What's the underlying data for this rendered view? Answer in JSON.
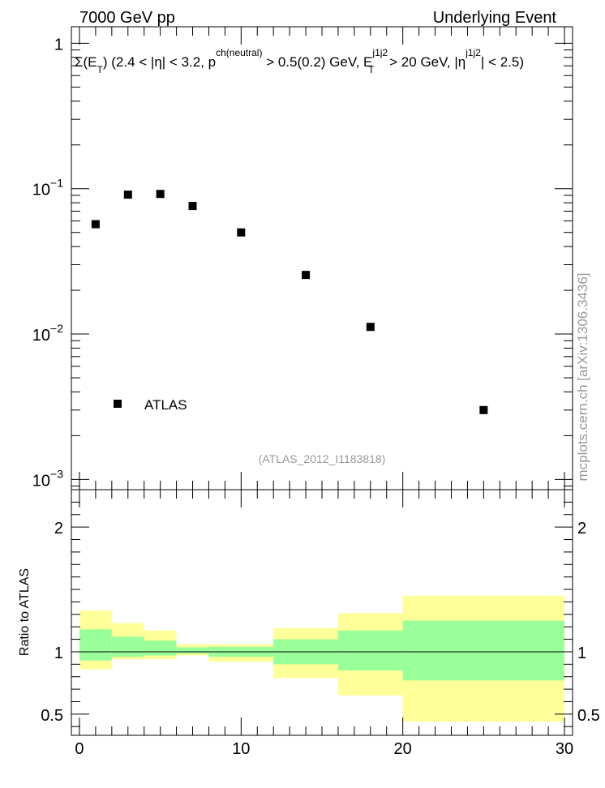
{
  "header": {
    "left": "7000 GeV pp",
    "right": "Underlying Event"
  },
  "watermark": "mcplots.cern.ch [arXiv:1306.3436]",
  "analysis_id": "(ATLAS_2012_I1183818)",
  "plot_label": {
    "sigma": "Σ(E",
    "sub_T": "T",
    "part1": ") (2.4 < |η| < 3.2, p",
    "sup_ch": "ch(neutral)",
    "part2": " > 0.5(0.2) GeV, E",
    "sup_j": "j1j2",
    "sub_T2": "T",
    "part3": " > 20 GeV, |η",
    "sup_j2": "j1j2",
    "part4": "| < 2.5)"
  },
  "chart_data": [
    {
      "type": "scatter",
      "series": [
        {
          "name": "ATLAS",
          "x": [
            1,
            3,
            5,
            7,
            10,
            14,
            18,
            25
          ],
          "y": [
            0.057,
            0.091,
            0.092,
            0.076,
            0.05,
            0.0255,
            0.0112,
            0.003
          ]
        }
      ],
      "xlim": [
        -0.5,
        30.5
      ],
      "ylim": [
        0.00085,
        1.3
      ],
      "yscale": "log",
      "ytick_labels": [
        {
          "value": 1,
          "base": "1",
          "exp": ""
        },
        {
          "value": 0.1,
          "base": "10",
          "exp": "−1"
        },
        {
          "value": 0.01,
          "base": "10",
          "exp": "−2"
        },
        {
          "value": 0.001,
          "base": "10",
          "exp": "−3"
        }
      ],
      "legend": {
        "label": "ATLAS",
        "placement": "bottom-left"
      }
    },
    {
      "type": "area",
      "ylabel": "Ratio to ATLAS",
      "xlim": [
        -0.5,
        30.5
      ],
      "ylim": [
        0.33,
        2.3
      ],
      "xticks": [
        0,
        10,
        20,
        30
      ],
      "yticks": [
        0.5,
        1,
        2
      ],
      "ytick_labels": [
        "0.5",
        "1",
        "2"
      ],
      "bins": [
        {
          "lo": 0,
          "hi": 2,
          "inner": [
            0.93,
            1.18
          ],
          "outer": [
            0.86,
            1.33
          ]
        },
        {
          "lo": 2,
          "hi": 4,
          "inner": [
            0.96,
            1.12
          ],
          "outer": [
            0.94,
            1.23
          ]
        },
        {
          "lo": 4,
          "hi": 6,
          "inner": [
            0.97,
            1.09
          ],
          "outer": [
            0.94,
            1.17
          ]
        },
        {
          "lo": 6,
          "hi": 8,
          "inner": [
            0.985,
            1.035
          ],
          "outer": [
            0.97,
            1.06
          ]
        },
        {
          "lo": 8,
          "hi": 12,
          "inner": [
            0.96,
            1.04
          ],
          "outer": [
            0.92,
            1.06
          ]
        },
        {
          "lo": 12,
          "hi": 16,
          "inner": [
            0.9,
            1.1
          ],
          "outer": [
            0.79,
            1.19
          ]
        },
        {
          "lo": 16,
          "hi": 20,
          "inner": [
            0.85,
            1.17
          ],
          "outer": [
            0.65,
            1.31
          ]
        },
        {
          "lo": 20,
          "hi": 30,
          "inner": [
            0.77,
            1.25
          ],
          "outer": [
            0.44,
            1.45
          ]
        }
      ],
      "reference_line": 1,
      "colors": {
        "inner": "#99ff99",
        "outer": "#ffff99"
      }
    }
  ]
}
